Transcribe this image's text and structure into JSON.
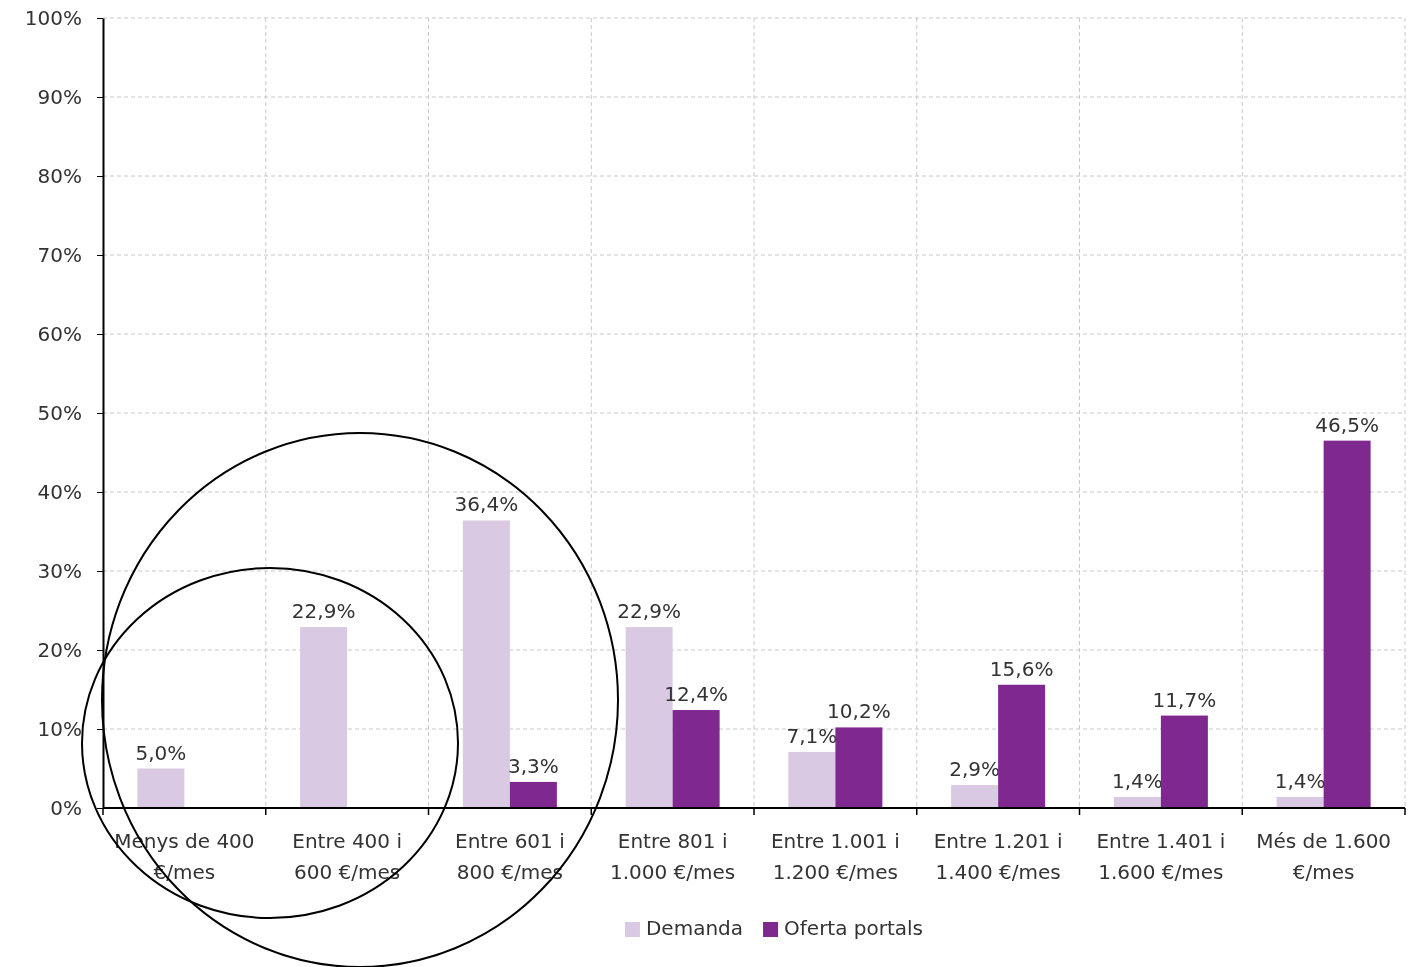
{
  "chart_data": {
    "type": "bar",
    "categories": [
      "Menys de 400 €/mes",
      "Entre 400 i 600 €/mes",
      "Entre 601 i 800 €/mes",
      "Entre 801 i 1.000 €/mes",
      "Entre 1.001 i 1.200 €/mes",
      "Entre 1.201 i 1.400 €/mes",
      "Entre 1.401 i 1.600 €/mes",
      "Més de 1.600 €/mes"
    ],
    "series": [
      {
        "name": "Demanda",
        "color": "#d9c9e3",
        "values": [
          5.0,
          22.9,
          36.4,
          22.9,
          7.1,
          2.9,
          1.4,
          1.4
        ],
        "value_labels": [
          "5,0%",
          "22,9%",
          "36,4%",
          "22,9%",
          "7,1%",
          "2,9%",
          "1,4%",
          "1,4%"
        ]
      },
      {
        "name": "Oferta portals",
        "color": "#7f2890",
        "values": [
          null,
          null,
          3.3,
          12.4,
          10.2,
          15.6,
          11.7,
          46.5
        ],
        "value_labels": [
          null,
          null,
          "3,3%",
          "12,4%",
          "10,2%",
          "15,6%",
          "11,7%",
          "46,5%"
        ]
      }
    ],
    "ylim": [
      0,
      100
    ],
    "yticks": [
      {
        "value": 0,
        "label": "0%"
      },
      {
        "value": 10,
        "label": "10%"
      },
      {
        "value": 20,
        "label": "20%"
      },
      {
        "value": 30,
        "label": "30%"
      },
      {
        "value": 40,
        "label": "40%"
      },
      {
        "value": 50,
        "label": "50%"
      },
      {
        "value": 60,
        "label": "60%"
      },
      {
        "value": 70,
        "label": "70%"
      },
      {
        "value": 80,
        "label": "80%"
      },
      {
        "value": 90,
        "label": "90%"
      },
      {
        "value": 100,
        "label": "100%"
      }
    ],
    "grid": true,
    "legend": "bottom"
  }
}
